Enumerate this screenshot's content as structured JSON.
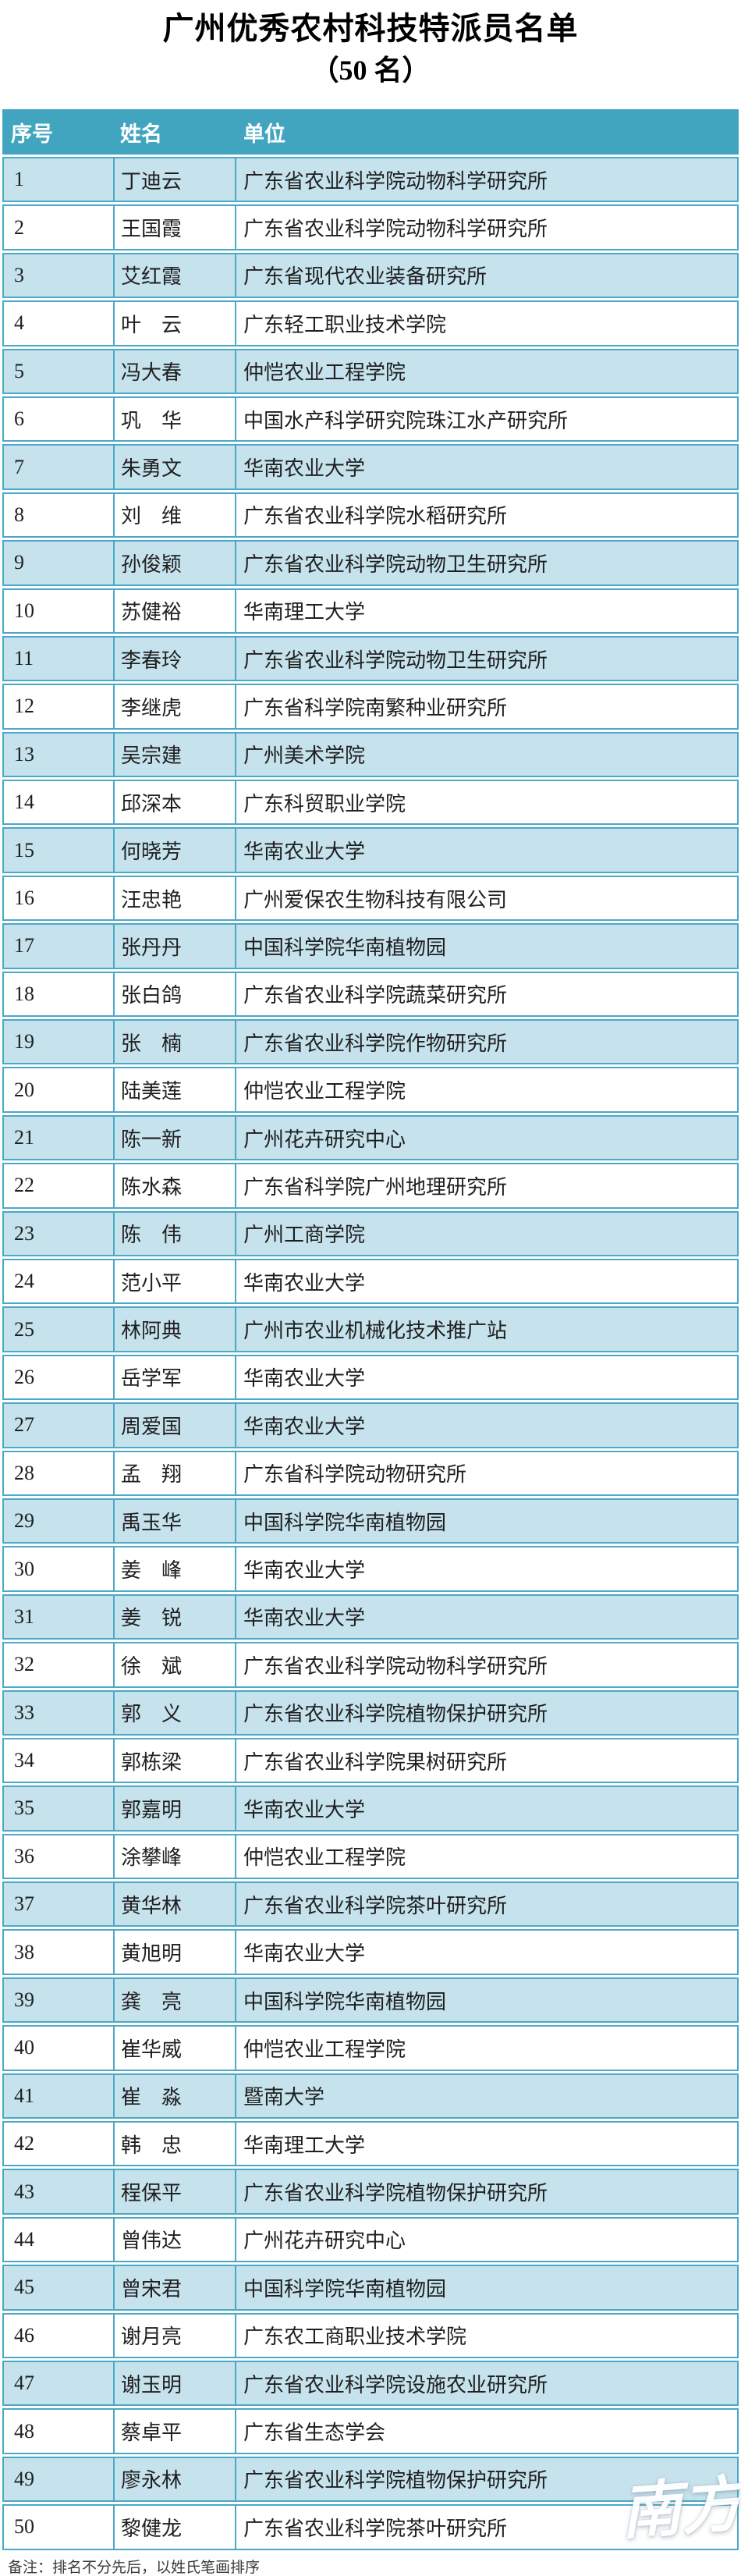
{
  "title": {
    "line1": "广州优秀农村科技特派员名单",
    "line2": "（50 名）"
  },
  "table": {
    "headers": {
      "no": "序号",
      "name": "姓名",
      "org": "单位"
    },
    "rows": [
      {
        "no": "1",
        "name": "丁迪云",
        "org": "广东省农业科学院动物科学研究所"
      },
      {
        "no": "2",
        "name": "王国霞",
        "org": "广东省农业科学院动物科学研究所"
      },
      {
        "no": "3",
        "name": "艾红霞",
        "org": "广东省现代农业装备研究所"
      },
      {
        "no": "4",
        "name": "叶　云",
        "org": "广东轻工职业技术学院"
      },
      {
        "no": "5",
        "name": "冯大春",
        "org": "仲恺农业工程学院"
      },
      {
        "no": "6",
        "name": "巩　华",
        "org": "中国水产科学研究院珠江水产研究所"
      },
      {
        "no": "7",
        "name": "朱勇文",
        "org": "华南农业大学"
      },
      {
        "no": "8",
        "name": "刘　维",
        "org": "广东省农业科学院水稻研究所"
      },
      {
        "no": "9",
        "name": "孙俊颖",
        "org": "广东省农业科学院动物卫生研究所"
      },
      {
        "no": "10",
        "name": "苏健裕",
        "org": "华南理工大学"
      },
      {
        "no": "11",
        "name": "李春玲",
        "org": "广东省农业科学院动物卫生研究所"
      },
      {
        "no": "12",
        "name": "李继虎",
        "org": "广东省科学院南繁种业研究所"
      },
      {
        "no": "13",
        "name": "吴宗建",
        "org": "广州美术学院"
      },
      {
        "no": "14",
        "name": "邱深本",
        "org": "广东科贸职业学院"
      },
      {
        "no": "15",
        "name": "何晓芳",
        "org": "华南农业大学"
      },
      {
        "no": "16",
        "name": "汪忠艳",
        "org": "广州爱保农生物科技有限公司"
      },
      {
        "no": "17",
        "name": "张丹丹",
        "org": "中国科学院华南植物园"
      },
      {
        "no": "18",
        "name": "张白鸽",
        "org": "广东省农业科学院蔬菜研究所"
      },
      {
        "no": "19",
        "name": "张　楠",
        "org": "广东省农业科学院作物研究所"
      },
      {
        "no": "20",
        "name": "陆美莲",
        "org": "仲恺农业工程学院"
      },
      {
        "no": "21",
        "name": "陈一新",
        "org": "广州花卉研究中心"
      },
      {
        "no": "22",
        "name": "陈水森",
        "org": "广东省科学院广州地理研究所"
      },
      {
        "no": "23",
        "name": "陈　伟",
        "org": "广州工商学院"
      },
      {
        "no": "24",
        "name": "范小平",
        "org": "华南农业大学"
      },
      {
        "no": "25",
        "name": "林阿典",
        "org": "广州市农业机械化技术推广站"
      },
      {
        "no": "26",
        "name": "岳学军",
        "org": "华南农业大学"
      },
      {
        "no": "27",
        "name": "周爱国",
        "org": "华南农业大学"
      },
      {
        "no": "28",
        "name": "孟　翔",
        "org": "广东省科学院动物研究所"
      },
      {
        "no": "29",
        "name": "禹玉华",
        "org": "中国科学院华南植物园"
      },
      {
        "no": "30",
        "name": "姜　峰",
        "org": "华南农业大学"
      },
      {
        "no": "31",
        "name": "姜　锐",
        "org": "华南农业大学"
      },
      {
        "no": "32",
        "name": "徐　斌",
        "org": "广东省农业科学院动物科学研究所"
      },
      {
        "no": "33",
        "name": "郭　义",
        "org": "广东省农业科学院植物保护研究所"
      },
      {
        "no": "34",
        "name": "郭栋梁",
        "org": "广东省农业科学院果树研究所"
      },
      {
        "no": "35",
        "name": "郭嘉明",
        "org": "华南农业大学"
      },
      {
        "no": "36",
        "name": "涂攀峰",
        "org": "仲恺农业工程学院"
      },
      {
        "no": "37",
        "name": "黄华林",
        "org": "广东省农业科学院茶叶研究所"
      },
      {
        "no": "38",
        "name": "黄旭明",
        "org": "华南农业大学"
      },
      {
        "no": "39",
        "name": "龚　亮",
        "org": "中国科学院华南植物园"
      },
      {
        "no": "40",
        "name": "崔华威",
        "org": "仲恺农业工程学院"
      },
      {
        "no": "41",
        "name": "崔　淼",
        "org": "暨南大学"
      },
      {
        "no": "42",
        "name": "韩　忠",
        "org": "华南理工大学"
      },
      {
        "no": "43",
        "name": "程保平",
        "org": "广东省农业科学院植物保护研究所"
      },
      {
        "no": "44",
        "name": "曾伟达",
        "org": "广州花卉研究中心"
      },
      {
        "no": "45",
        "name": "曾宋君",
        "org": "中国科学院华南植物园"
      },
      {
        "no": "46",
        "name": "谢月亮",
        "org": "广东农工商职业技术学院"
      },
      {
        "no": "47",
        "name": "谢玉明",
        "org": "广东省农业科学院设施农业研究所"
      },
      {
        "no": "48",
        "name": "蔡卓平",
        "org": "广东省生态学会"
      },
      {
        "no": "49",
        "name": "廖永林",
        "org": "广东省农业科学院植物保护研究所"
      },
      {
        "no": "50",
        "name": "黎健龙",
        "org": "广东省农业科学院茶叶研究所"
      }
    ]
  },
  "note": "备注：排名不分先后，以姓氏笔画排序",
  "watermark": {
    "text": "南方",
    "plus": "+"
  },
  "colors": {
    "header_bg": "#41a5bf",
    "cell_border": "#4aa9c4",
    "row_alt_bg": "#c6e2ec",
    "row_bg": "#ffffff",
    "header_text": "#ffffff",
    "body_text": "#1f1f1f"
  }
}
